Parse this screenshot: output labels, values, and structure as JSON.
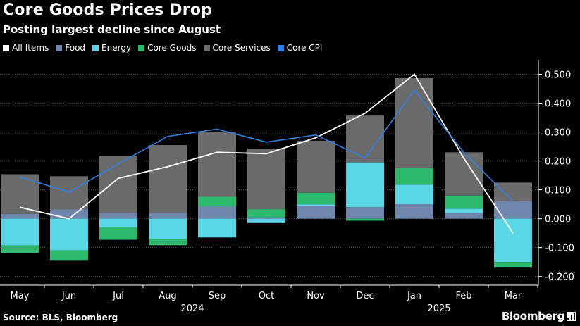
{
  "header": {
    "title": "Core Goods Prices Drop",
    "subtitle": "Posting largest decline since August"
  },
  "footer": {
    "source": "Source: BLS, Bloomberg",
    "brand": "Bloomberg"
  },
  "colors": {
    "all_items": "#ffffff",
    "food": "#6f86ad",
    "energy": "#5ad6e4",
    "core_goods": "#2db86e",
    "core_services": "#6a6a6a",
    "core_cpi": "#2f7fe0"
  },
  "chart_data": {
    "type": "bar",
    "stacked": true,
    "title": "Core Goods Prices Drop",
    "subtitle": "Posting largest decline since August",
    "categories": [
      "May",
      "Jun",
      "Jul",
      "Aug",
      "Sep",
      "Oct",
      "Nov",
      "Dec",
      "Jan",
      "Feb",
      "Mar"
    ],
    "year_labels": [
      {
        "label": "2024",
        "category_index": 4
      },
      {
        "label": "2025",
        "category_index": 9
      }
    ],
    "ylim": [
      -0.23,
      0.55
    ],
    "yticks": [
      -0.2,
      -0.1,
      0.0,
      0.1,
      0.2,
      0.3,
      0.4,
      0.5
    ],
    "ytick_labels": [
      "-0.200",
      "-0.100",
      "0.000",
      "0.100",
      "0.200",
      "0.300",
      "0.400",
      "0.500"
    ],
    "legend_position": "top-left",
    "series": [
      {
        "name": "Food",
        "kind": "bar",
        "color_key": "food",
        "values": [
          0.017,
          0.032,
          0.02,
          0.02,
          0.043,
          0.005,
          0.045,
          0.04,
          0.05,
          0.02,
          0.06
        ]
      },
      {
        "name": "Energy",
        "kind": "bar",
        "color_key": "energy",
        "values": [
          -0.093,
          -0.11,
          -0.03,
          -0.07,
          -0.065,
          -0.015,
          0.005,
          0.155,
          0.068,
          0.015,
          -0.15
        ]
      },
      {
        "name": "Core Goods",
        "kind": "bar",
        "color_key": "core_goods",
        "values": [
          -0.025,
          -0.033,
          -0.043,
          -0.022,
          0.033,
          0.028,
          0.04,
          -0.007,
          0.057,
          0.045,
          -0.017
        ]
      },
      {
        "name": "Core Services",
        "kind": "bar",
        "color_key": "core_services",
        "values": [
          0.137,
          0.115,
          0.197,
          0.235,
          0.225,
          0.21,
          0.18,
          0.162,
          0.312,
          0.15,
          0.065
        ]
      },
      {
        "name": "All Items",
        "kind": "line",
        "color_key": "all_items",
        "values": [
          0.04,
          0.0,
          0.14,
          0.18,
          0.23,
          0.225,
          0.28,
          0.365,
          0.5,
          0.21,
          -0.05
        ]
      },
      {
        "name": "Core CPI",
        "kind": "line",
        "color_key": "core_cpi",
        "values": [
          0.145,
          0.092,
          0.19,
          0.285,
          0.31,
          0.265,
          0.29,
          0.21,
          0.445,
          0.23,
          0.06
        ]
      }
    ],
    "legend": [
      "All Items",
      "Food",
      "Energy",
      "Core Goods",
      "Core Services",
      "Core CPI"
    ]
  }
}
